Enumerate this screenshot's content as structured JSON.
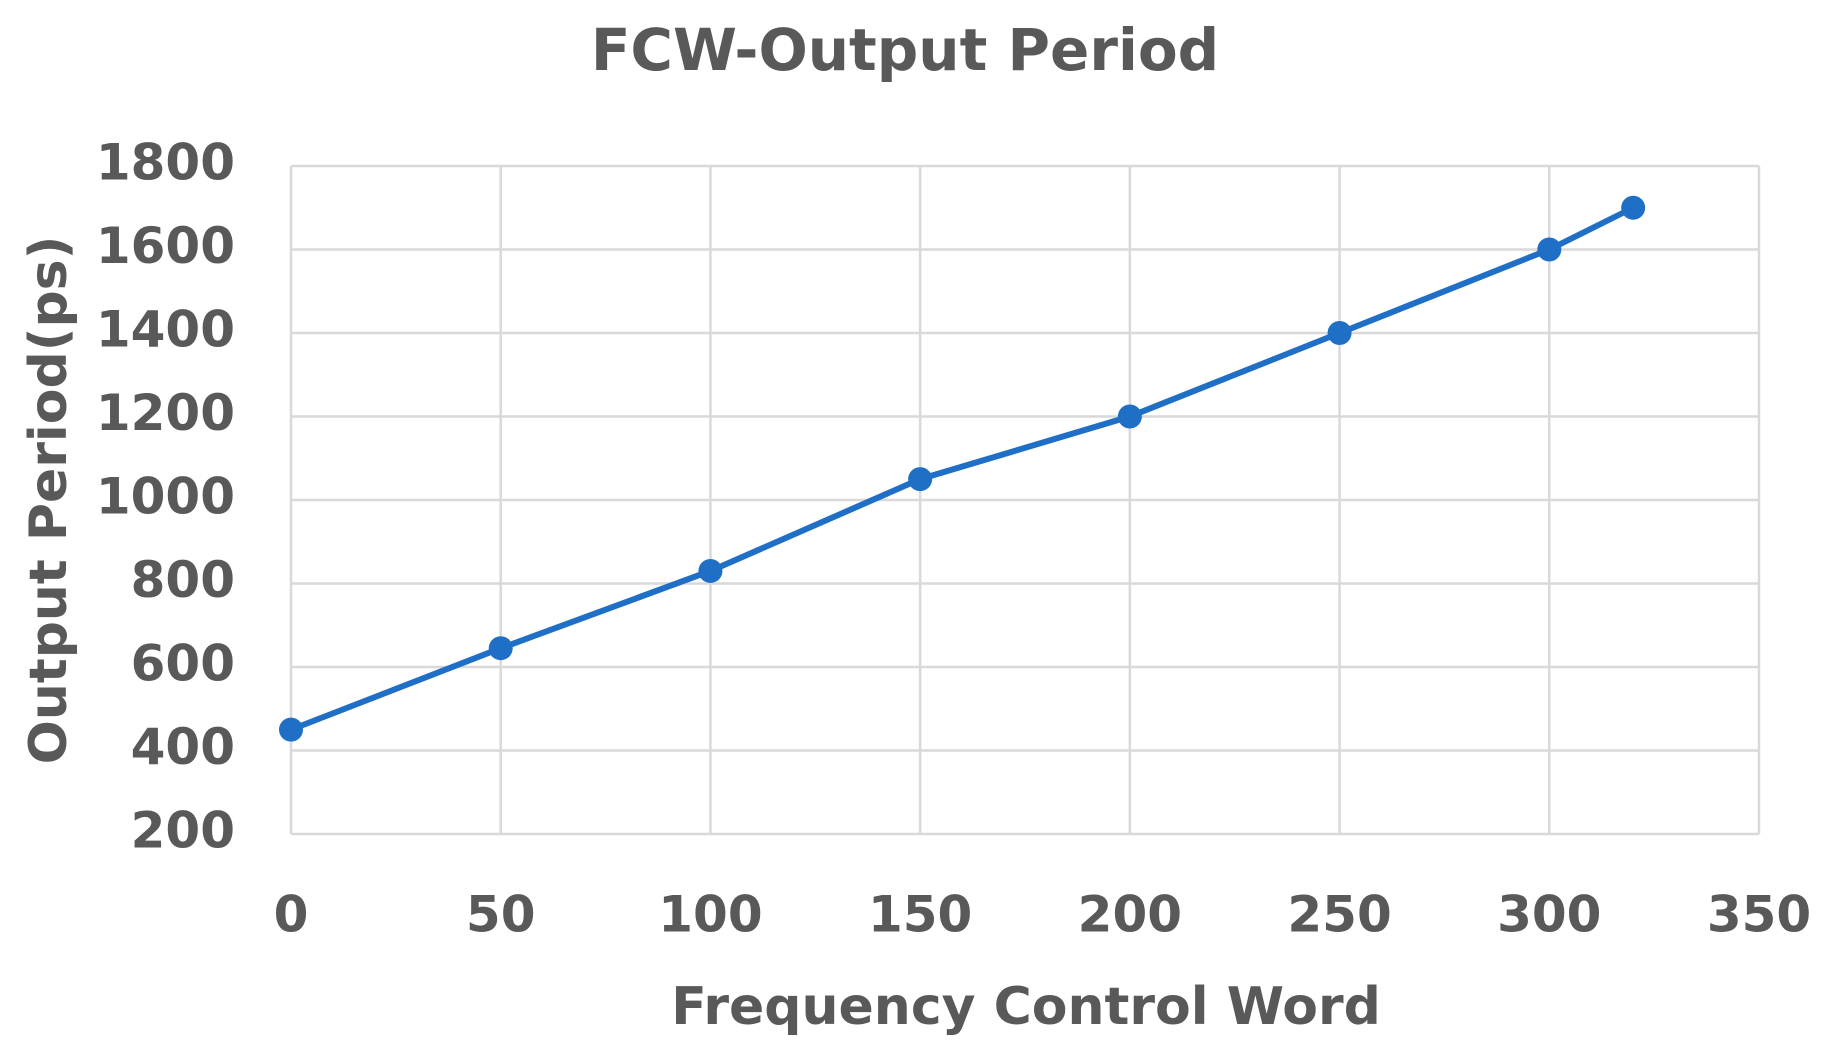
{
  "chart_data": {
    "type": "line",
    "title": "FCW-Output Period",
    "x_label": "Frequency Control Word",
    "y_label": "Output Period(ps)",
    "x": [
      0,
      50,
      100,
      150,
      200,
      250,
      300,
      320
    ],
    "series": [
      {
        "name": "Output Period",
        "color": "#1f6fc6",
        "values": [
          450,
          645,
          830,
          1050,
          1200,
          1400,
          1600,
          1700
        ]
      }
    ],
    "xlim": [
      0,
      350
    ],
    "xticks": [
      0,
      50,
      100,
      150,
      200,
      250,
      300,
      350
    ],
    "ylim": [
      200,
      1800
    ],
    "yticks": [
      200,
      400,
      600,
      800,
      1000,
      1200,
      1400,
      1600,
      1800
    ],
    "grid": true
  }
}
